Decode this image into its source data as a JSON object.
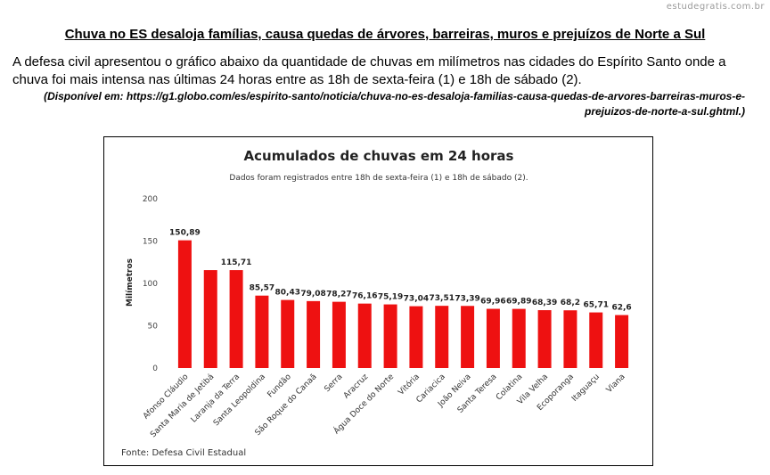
{
  "site": "estudegratis.com.br",
  "headline": "Chuva no ES desaloja famílias, causa quedas de árvores, barreiras, muros e prejuízos de Norte a Sul",
  "intro": "A defesa civil apresentou o gráfico abaixo da quantidade de chuvas em milímetros nas cidades do Espírito Santo onde a chuva foi mais intensa nas últimas 24 horas entre as 18h de sexta-feira (1) e 18h de sábado (2).",
  "source": "(Disponível em: https://g1.globo.com/es/espirito-santo/noticia/chuva-no-es-desaloja-familias-causa-quedas-de-arvores-barreiras-muros-e-prejuizos-de-norte-a-sul.ghtml.)",
  "chart_data": {
    "type": "bar",
    "title": "Acumulados de chuvas em 24 horas",
    "subtitle": "Dados foram registrados entre 18h de sexta-feira (1) e 18h de sábado (2).",
    "ylabel": "Milímetros",
    "xlabel": "",
    "ylim": [
      0,
      200
    ],
    "yticks": [
      0,
      50,
      100,
      150,
      200
    ],
    "grid": false,
    "bar_color": "#ee1111",
    "categories": [
      "Afonso Cláudio",
      "Santa Maria de Jetibá",
      "Laranja da Terra",
      "Santa Leopoldina",
      "Fundão",
      "São Roque do Canaã",
      "Serra",
      "Aracruz",
      "Água Doce do Norte",
      "Vitória",
      "Cariacica",
      "João Neiva",
      "Santa Teresa",
      "Colatina",
      "Vila Velha",
      "Ecoporanga",
      "Itaguaçu",
      "Viana"
    ],
    "values": [
      150.89,
      115.71,
      115.71,
      85.57,
      80.43,
      79.08,
      78.27,
      76.16,
      75.19,
      73.04,
      73.51,
      73.39,
      69.96,
      69.89,
      68.39,
      68.2,
      65.71,
      62.6
    ],
    "value_labels": [
      "150,89",
      "",
      "115,71",
      "85,57",
      "80,43",
      "79,08",
      "78,27",
      "76,16",
      "75,19",
      "73,04",
      "73,51",
      "73,39",
      "69,96",
      "69,89",
      "68,39",
      "68,2",
      "65,71",
      "62,6"
    ],
    "footnote": "Fonte: Defesa Civil Estadual"
  }
}
